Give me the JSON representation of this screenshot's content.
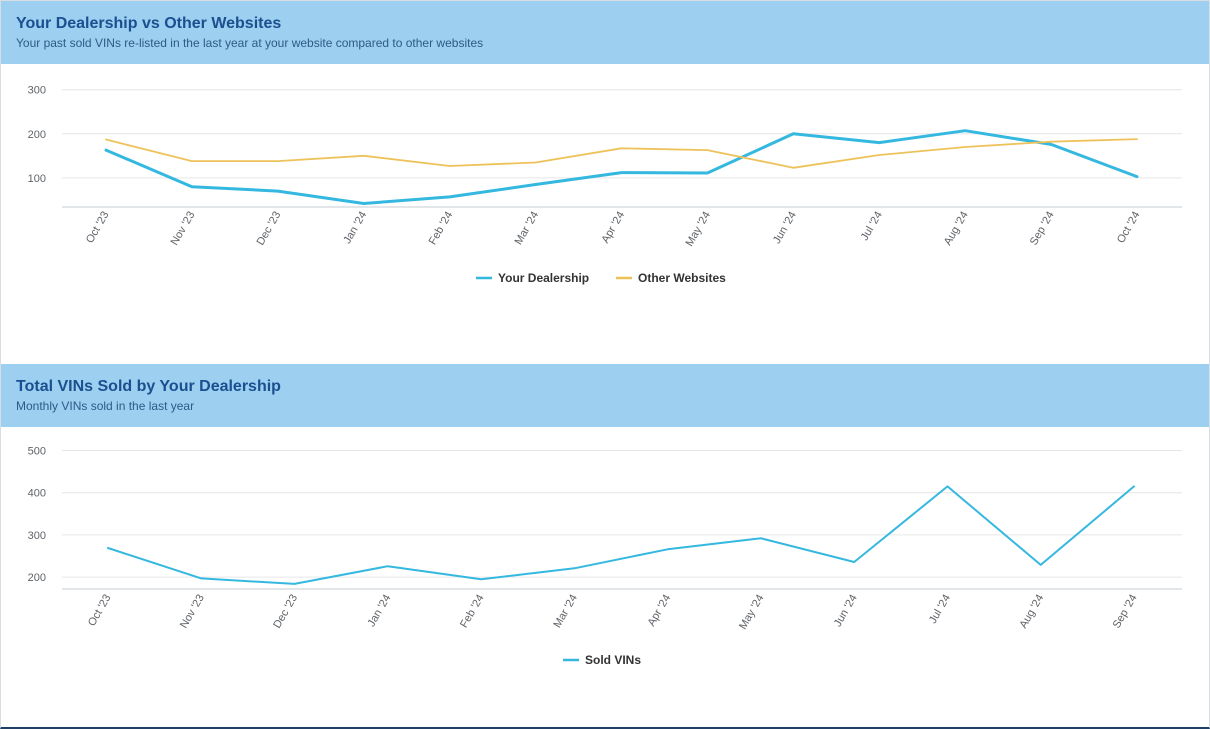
{
  "chart_data": [
    {
      "type": "line",
      "title": "Your Dealership vs Other Websites",
      "subtitle": "Your past sold VINs re-listed in the last year at your website compared to other websites",
      "categories": [
        "Oct '23",
        "Nov '23",
        "Dec '23",
        "Jan '24",
        "Feb '24",
        "Mar '24",
        "Apr '24",
        "May '24",
        "Jun '24",
        "Jul '24",
        "Aug '24",
        "Sep '24",
        "Oct '24"
      ],
      "yticks": [
        100,
        200,
        300
      ],
      "ylim": [
        34,
        330
      ],
      "series": [
        {
          "name": "Your Dealership",
          "color": "#35b8e0",
          "values": [
            163,
            80,
            70,
            42,
            57,
            85,
            112,
            111,
            200,
            180,
            207,
            176,
            103
          ]
        },
        {
          "name": "Other Websites",
          "color": "#eec25a",
          "values": [
            187,
            138,
            138,
            150,
            127,
            135,
            167,
            163,
            123,
            152,
            170,
            182,
            188
          ]
        }
      ],
      "legend": "bottom-center"
    },
    {
      "type": "line",
      "title": "Total VINs Sold by Your Dealership",
      "subtitle": "Monthly VINs sold in the last year",
      "categories": [
        "Oct '23",
        "Nov '23",
        "Dec '23",
        "Jan '24",
        "Feb '24",
        "Mar '24",
        "Apr '24",
        "May '24",
        "Jun '24",
        "Jul '24",
        "Aug '24",
        "Sep '24"
      ],
      "yticks": [
        200,
        300,
        400,
        500
      ],
      "ylim": [
        172,
        525
      ],
      "series": [
        {
          "name": "Sold VINs",
          "color": "#35b8e0",
          "values": [
            269,
            197,
            184,
            226,
            195,
            221,
            266,
            292,
            236,
            415,
            229,
            415
          ]
        }
      ],
      "legend": "bottom-center"
    }
  ]
}
